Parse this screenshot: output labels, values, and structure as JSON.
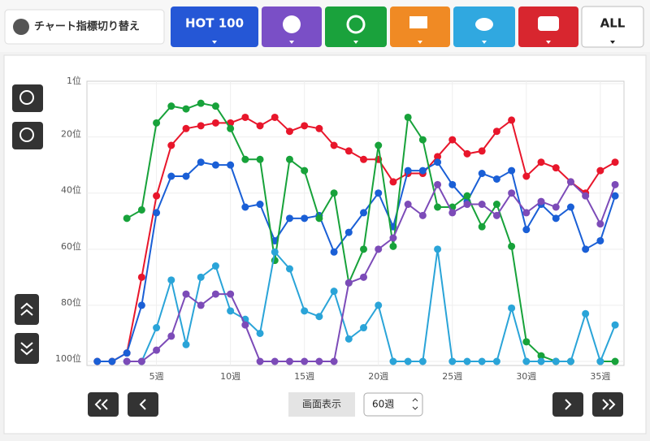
{
  "ui": {
    "switch_label": "チャート指標切り替え",
    "tab_hot": "HOT 100",
    "tab_all": "ALL",
    "display_label": "画面表示",
    "period": "60週"
  },
  "chart_data": {
    "type": "line",
    "x": [
      1,
      2,
      3,
      4,
      5,
      6,
      7,
      8,
      9,
      10,
      11,
      12,
      13,
      14,
      15,
      16,
      17,
      18,
      19,
      20,
      21,
      22,
      23,
      24,
      25,
      26,
      27,
      28,
      29,
      30,
      31,
      32,
      33,
      34,
      35,
      36
    ],
    "xlim": [
      0.3,
      36.6
    ],
    "xticks": [
      {
        "value": 5,
        "label": "5週"
      },
      {
        "value": 10,
        "label": "10週"
      },
      {
        "value": 15,
        "label": "15週"
      },
      {
        "value": 20,
        "label": "20週"
      },
      {
        "value": 25,
        "label": "25週"
      },
      {
        "value": 30,
        "label": "30週"
      },
      {
        "value": 35,
        "label": "35週"
      }
    ],
    "ylim": [
      100,
      1
    ],
    "y_inverted": true,
    "yticks": [
      {
        "value": 1,
        "label": "1位"
      },
      {
        "value": 20,
        "label": "20位"
      },
      {
        "value": 40,
        "label": "40位"
      },
      {
        "value": 60,
        "label": "60位"
      },
      {
        "value": 80,
        "label": "80位"
      },
      {
        "value": 100,
        "label": "100位"
      }
    ],
    "grid": true,
    "series": [
      {
        "color": "#e8162b",
        "values": [
          100,
          100,
          97,
          70,
          41,
          23,
          17,
          16,
          15,
          15,
          13,
          16,
          13,
          18,
          16,
          17,
          23,
          25,
          28,
          28,
          36,
          33,
          33,
          27,
          21,
          26,
          25,
          18,
          14,
          34,
          29,
          31,
          36,
          40,
          32,
          29
        ]
      },
      {
        "color": "#1a5fd6",
        "values": [
          100,
          100,
          97,
          80,
          47,
          34,
          34,
          29,
          30,
          30,
          45,
          44,
          57,
          49,
          49,
          48,
          61,
          54,
          47,
          40,
          52,
          32,
          32,
          29,
          37,
          43,
          33,
          35,
          32,
          53,
          44,
          49,
          45,
          60,
          57,
          41
        ]
      },
      {
        "color": "#17a23a",
        "values": [
          null,
          null,
          49,
          46,
          15,
          9,
          10,
          8,
          9,
          17,
          28,
          28,
          64,
          28,
          32,
          49,
          40,
          72,
          60,
          23,
          59,
          13,
          21,
          45,
          45,
          41,
          52,
          44,
          59,
          93,
          98,
          100,
          100,
          null,
          100,
          100
        ]
      },
      {
        "color": "#2aa4d8",
        "values": [
          null,
          null,
          100,
          100,
          88,
          71,
          94,
          70,
          66,
          82,
          85,
          90,
          61,
          67,
          82,
          84,
          75,
          92,
          88,
          80,
          100,
          100,
          100,
          60,
          100,
          100,
          100,
          100,
          81,
          100,
          100,
          100,
          100,
          83,
          100,
          87
        ]
      },
      {
        "color": "#7c4bb8",
        "values": [
          null,
          null,
          100,
          100,
          96,
          91,
          76,
          80,
          76,
          76,
          87,
          100,
          100,
          100,
          100,
          100,
          100,
          72,
          70,
          60,
          56,
          44,
          48,
          37,
          47,
          44,
          44,
          48,
          40,
          47,
          43,
          45,
          36,
          41,
          51,
          37
        ]
      }
    ]
  }
}
